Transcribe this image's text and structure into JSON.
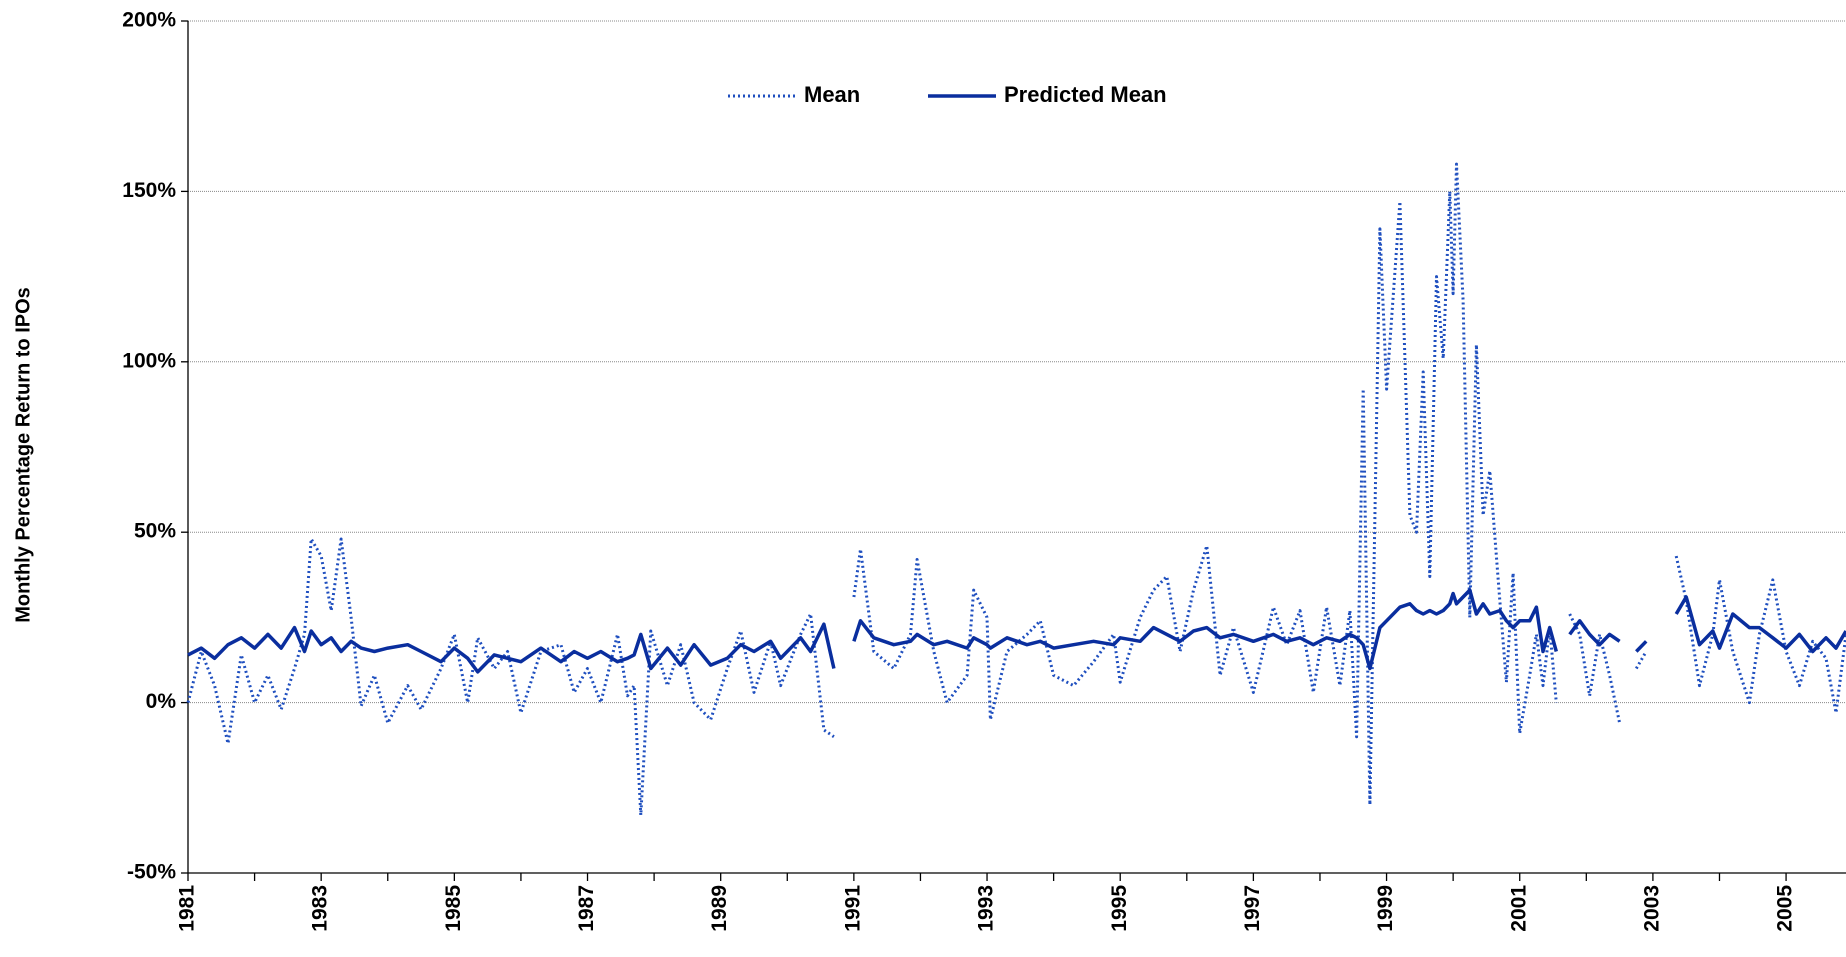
{
  "chart_data": {
    "type": "line",
    "y_label": "Monthly Percentage Return to IPOs",
    "xlim": [
      1981,
      2005.9
    ],
    "xticks": [
      1981,
      1983,
      1985,
      1987,
      1989,
      1991,
      1993,
      1995,
      1997,
      1999,
      2001,
      2003,
      2005
    ],
    "ylim": [
      -50,
      200
    ],
    "yticks": [
      {
        "value": -50,
        "label": "-50%"
      },
      {
        "value": 0,
        "label": "0%"
      },
      {
        "value": 50,
        "label": "50%"
      },
      {
        "value": 100,
        "label": "100%"
      },
      {
        "value": 150,
        "label": "150%"
      },
      {
        "value": 200,
        "label": "200%"
      }
    ],
    "grid": true,
    "legend": "top",
    "x": [
      1981.0,
      1981.2,
      1981.4,
      1981.6,
      1981.8,
      1982.0,
      1982.2,
      1982.4,
      1982.6,
      1982.75,
      1982.85,
      1983.0,
      1983.15,
      1983.3,
      1983.45,
      1983.6,
      1983.8,
      1984.0,
      1984.3,
      1984.5,
      1984.8,
      1985.0,
      1985.2,
      1985.35,
      1985.6,
      1985.8,
      1986.0,
      1986.3,
      1986.6,
      1986.8,
      1987.0,
      1987.2,
      1987.45,
      1987.6,
      1987.7,
      1987.8,
      1987.95,
      1988.2,
      1988.4,
      1988.6,
      1988.85,
      1989.1,
      1989.3,
      1989.5,
      1989.75,
      1989.9,
      1990.2,
      1990.35,
      1990.55,
      1990.7,
      1990.85,
      1991.0,
      1991.1,
      1991.3,
      1991.6,
      1991.85,
      1991.95,
      1992.2,
      1992.4,
      1992.7,
      1992.8,
      1993.0,
      1993.05,
      1993.3,
      1993.6,
      1993.8,
      1994.0,
      1994.3,
      1994.6,
      1994.9,
      1995.0,
      1995.3,
      1995.5,
      1995.7,
      1995.9,
      1996.1,
      1996.3,
      1996.5,
      1996.7,
      1997.0,
      1997.3,
      1997.5,
      1997.7,
      1997.9,
      1998.1,
      1998.3,
      1998.45,
      1998.55,
      1998.65,
      1998.75,
      1998.9,
      1999.0,
      1999.2,
      1999.35,
      1999.45,
      1999.55,
      1999.65,
      1999.75,
      1999.85,
      1999.95,
      2000.0,
      2000.05,
      2000.15,
      2000.25,
      2000.35,
      2000.45,
      2000.55,
      2000.7,
      2000.8,
      2000.9,
      2001.0,
      2001.15,
      2001.25,
      2001.35,
      2001.45,
      2001.55,
      2001.65,
      2001.75,
      2001.9,
      2002.05,
      2002.2,
      2002.35,
      2002.5,
      2002.62,
      2002.75,
      2002.9,
      2003.1,
      2003.35,
      2003.5,
      2003.7,
      2003.9,
      2004.0,
      2004.2,
      2004.45,
      2004.6,
      2004.8,
      2005.0,
      2005.2,
      2005.4,
      2005.6,
      2005.75,
      2005.9
    ],
    "series": [
      {
        "name": "Mean",
        "color": "#1f4fbf",
        "style": "dotted",
        "values": [
          0,
          15,
          5,
          -12,
          14,
          0,
          8,
          -2,
          10,
          20,
          48,
          43,
          27,
          48,
          25,
          -1,
          8,
          -6,
          5,
          -2,
          10,
          20,
          0,
          19,
          10,
          15,
          -3,
          15,
          17,
          3,
          10,
          0,
          20,
          2,
          5,
          -33,
          21,
          5,
          17,
          0,
          -5,
          10,
          21,
          3,
          18,
          5,
          20,
          26,
          -8,
          -10,
          null,
          31,
          45,
          15,
          10,
          20,
          42,
          15,
          0,
          8,
          33,
          25,
          -5,
          15,
          20,
          24,
          8,
          5,
          12,
          20,
          6,
          25,
          33,
          37,
          15,
          33,
          46,
          8,
          22,
          3,
          28,
          17,
          27,
          3,
          28,
          5,
          27,
          -10,
          92,
          -30,
          139,
          92,
          147,
          55,
          50,
          97,
          37,
          125,
          101,
          150,
          120,
          158,
          118,
          25,
          105,
          55,
          68,
          30,
          6,
          38,
          -9,
          8,
          20,
          5,
          22,
          0,
          null,
          26,
          20,
          2,
          20,
          8,
          -6,
          null,
          10,
          15,
          null,
          43,
          30,
          5,
          20,
          36,
          15,
          0,
          20,
          36,
          15,
          5,
          18,
          13,
          -3,
          20
        ]
      },
      {
        "name": "Predicted Mean",
        "color": "#0a2e9e",
        "style": "solid",
        "values": [
          14,
          16,
          13,
          17,
          19,
          16,
          20,
          16,
          22,
          15,
          21,
          17,
          19,
          15,
          18,
          16,
          15,
          16,
          17,
          15,
          12,
          16,
          13,
          9,
          14,
          13,
          12,
          16,
          12,
          15,
          13,
          15,
          12,
          13,
          14,
          20,
          10,
          16,
          11,
          17,
          11,
          13,
          17,
          15,
          18,
          13,
          19,
          15,
          23,
          10,
          null,
          18,
          24,
          19,
          17,
          18,
          20,
          17,
          18,
          16,
          19,
          17,
          16,
          19,
          17,
          18,
          16,
          17,
          18,
          17,
          19,
          18,
          22,
          20,
          18,
          21,
          22,
          19,
          20,
          18,
          20,
          18,
          19,
          17,
          19,
          18,
          20,
          19,
          17,
          10,
          22,
          24,
          28,
          29,
          27,
          26,
          27,
          26,
          27,
          29,
          32,
          29,
          31,
          33,
          26,
          29,
          26,
          27,
          24,
          22,
          24,
          24,
          28,
          15,
          22,
          15,
          null,
          20,
          24,
          20,
          17,
          20,
          18,
          null,
          15,
          18,
          null,
          26,
          31,
          17,
          21,
          16,
          26,
          22,
          22,
          19,
          16,
          20,
          15,
          19,
          16,
          21
        ]
      }
    ]
  }
}
